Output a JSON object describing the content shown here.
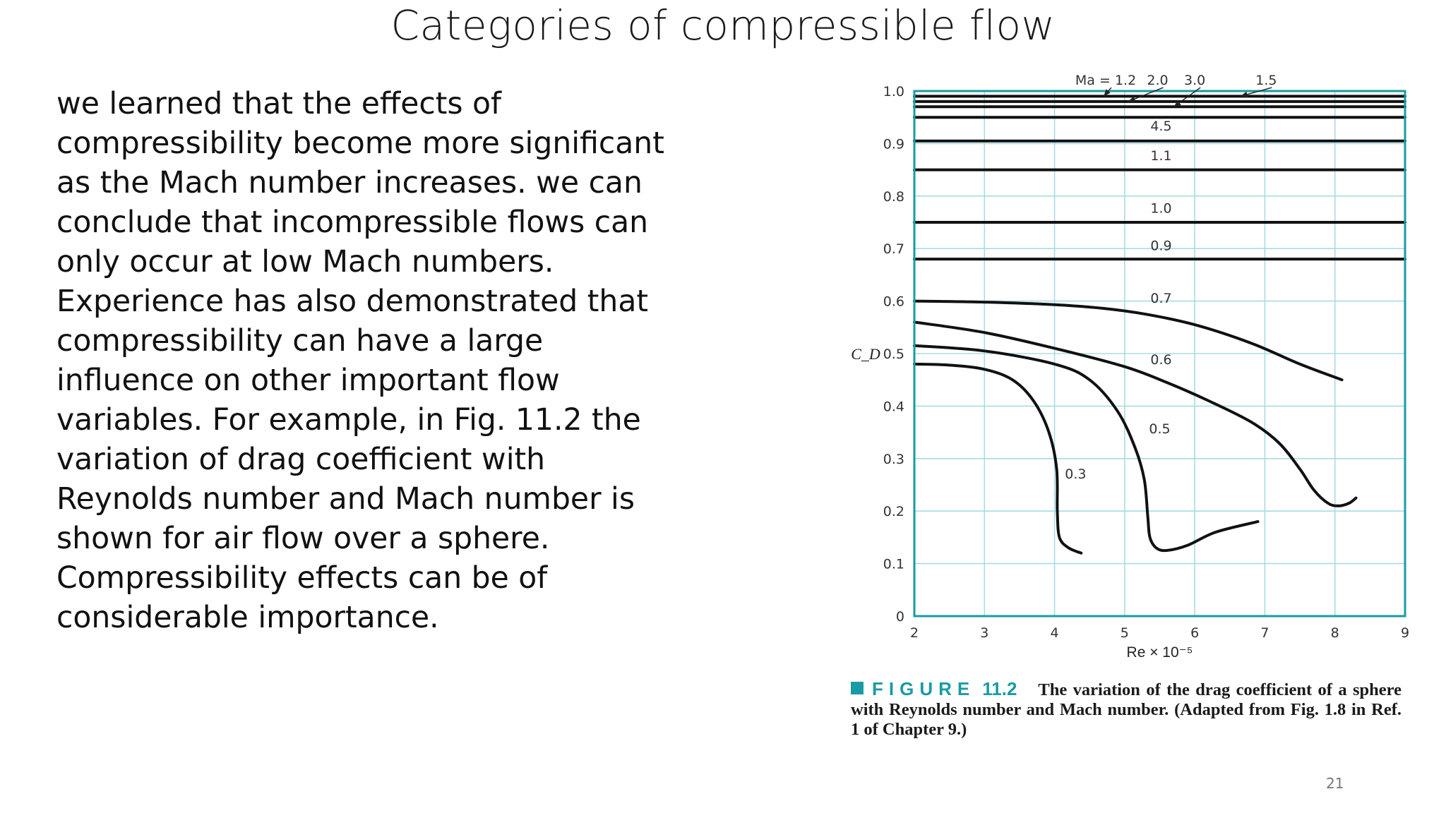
{
  "slide": {
    "title": "Categories of compressible flow",
    "body": "we learned that the effects of\ncompressibility become more significant\nas the Mach number increases. we can\nconclude that incompressible flows can\nonly occur at low Mach numbers.\nExperience has also demonstrated that\ncompressibility can have a large\ninfluence on other important flow\nvariables. For example, in Fig. 11.2 the\nvariation of drag coefficient with\nReynolds number and Mach number is\nshown for air flow over a sphere.\nCompressibility effects can be of\nconsiderable importance.",
    "page_number": "21"
  },
  "caption": {
    "label": "FIGURE",
    "number": "11.2",
    "text": "The variation of the drag coefficient of a sphere with Reynolds number and Mach number. (Adapted from Fig. 1.8 in Ref. 1 of Chapter 9.)"
  },
  "chart_data": {
    "type": "line",
    "xlabel": "Re × 10⁻⁵",
    "ylabel": "C_D",
    "xlim": [
      2,
      9
    ],
    "ylim": [
      0,
      1.0
    ],
    "x_ticks": [
      "2",
      "3",
      "4",
      "5",
      "6",
      "7",
      "8",
      "9"
    ],
    "y_ticks": [
      "0",
      "0.1",
      "0.2",
      "0.3",
      "0.4",
      "0.5",
      "0.6",
      "0.7",
      "0.8",
      "0.9",
      "1.0"
    ],
    "grid": true,
    "frame_color": "#1a9ba3",
    "grid_color": "#a8dde0",
    "series": [
      {
        "name": "1.2",
        "x": [
          2,
          9
        ],
        "y": [
          0.99,
          0.99
        ]
      },
      {
        "name": "2.0",
        "x": [
          2,
          9
        ],
        "y": [
          0.98,
          0.98
        ]
      },
      {
        "name": "3.0",
        "x": [
          2,
          9
        ],
        "y": [
          0.97,
          0.97
        ]
      },
      {
        "name": "1.5",
        "x": [
          2,
          9
        ],
        "y": [
          0.95,
          0.95
        ]
      },
      {
        "name": "4.5",
        "x": [
          2,
          9
        ],
        "y": [
          0.905,
          0.905
        ]
      },
      {
        "name": "1.1",
        "x": [
          2,
          9
        ],
        "y": [
          0.85,
          0.85
        ]
      },
      {
        "name": "1.0",
        "x": [
          2,
          9
        ],
        "y": [
          0.75,
          0.75
        ]
      },
      {
        "name": "0.9",
        "x": [
          2,
          9
        ],
        "y": [
          0.68,
          0.68
        ]
      },
      {
        "name": "0.7",
        "x": [
          2.0,
          3.0,
          4.0,
          4.7,
          5.3,
          6.0,
          6.8,
          7.5,
          8.1
        ],
        "y": [
          0.6,
          0.598,
          0.593,
          0.586,
          0.575,
          0.555,
          0.52,
          0.48,
          0.45
        ]
      },
      {
        "name": "0.6",
        "x": [
          2.0,
          3.0,
          4.0,
          5.0,
          5.6,
          6.2,
          6.8,
          7.2,
          7.5,
          7.7,
          7.9,
          8.05,
          8.2,
          8.3
        ],
        "y": [
          0.56,
          0.54,
          0.51,
          0.475,
          0.445,
          0.41,
          0.37,
          0.33,
          0.28,
          0.24,
          0.215,
          0.21,
          0.215,
          0.225
        ]
      },
      {
        "name": "0.5",
        "x": [
          2.0,
          3.0,
          4.0,
          4.5,
          4.9,
          5.15,
          5.28,
          5.33,
          5.36,
          5.45,
          5.6,
          5.9,
          6.3,
          6.9
        ],
        "y": [
          0.515,
          0.505,
          0.48,
          0.45,
          0.39,
          0.32,
          0.26,
          0.19,
          0.15,
          0.13,
          0.125,
          0.135,
          0.16,
          0.18
        ]
      },
      {
        "name": "0.3",
        "x": [
          2.0,
          2.5,
          3.0,
          3.4,
          3.7,
          3.92,
          4.03,
          4.04,
          4.07,
          4.2,
          4.38
        ],
        "y": [
          0.48,
          0.478,
          0.47,
          0.45,
          0.41,
          0.35,
          0.28,
          0.2,
          0.15,
          0.13,
          0.12
        ]
      }
    ],
    "annotations": [
      {
        "text": "Ma = 1.2",
        "x": 4.73,
        "y": 1.012,
        "arrow_to": [
          4.7,
          0.99
        ]
      },
      {
        "text": "2.0",
        "x": 5.47,
        "y": 1.012,
        "arrow_to": [
          5.05,
          0.98
        ]
      },
      {
        "text": "3.0",
        "x": 6.0,
        "y": 1.012,
        "arrow_to": [
          5.7,
          0.97
        ]
      },
      {
        "text": "1.5",
        "x": 7.02,
        "y": 1.012,
        "arrow_to": [
          6.65,
          0.99
        ]
      },
      {
        "text": "4.5",
        "x": 5.52,
        "y": 0.925
      },
      {
        "text": "1.1",
        "x": 5.52,
        "y": 0.868
      },
      {
        "text": "1.0",
        "x": 5.52,
        "y": 0.768
      },
      {
        "text": "0.9",
        "x": 5.52,
        "y": 0.697
      },
      {
        "text": "0.7",
        "x": 5.52,
        "y": 0.597
      },
      {
        "text": "0.6",
        "x": 5.52,
        "y": 0.48
      },
      {
        "text": "0.5",
        "x": 5.5,
        "y": 0.348
      },
      {
        "text": "0.3",
        "x": 4.3,
        "y": 0.262
      }
    ]
  }
}
